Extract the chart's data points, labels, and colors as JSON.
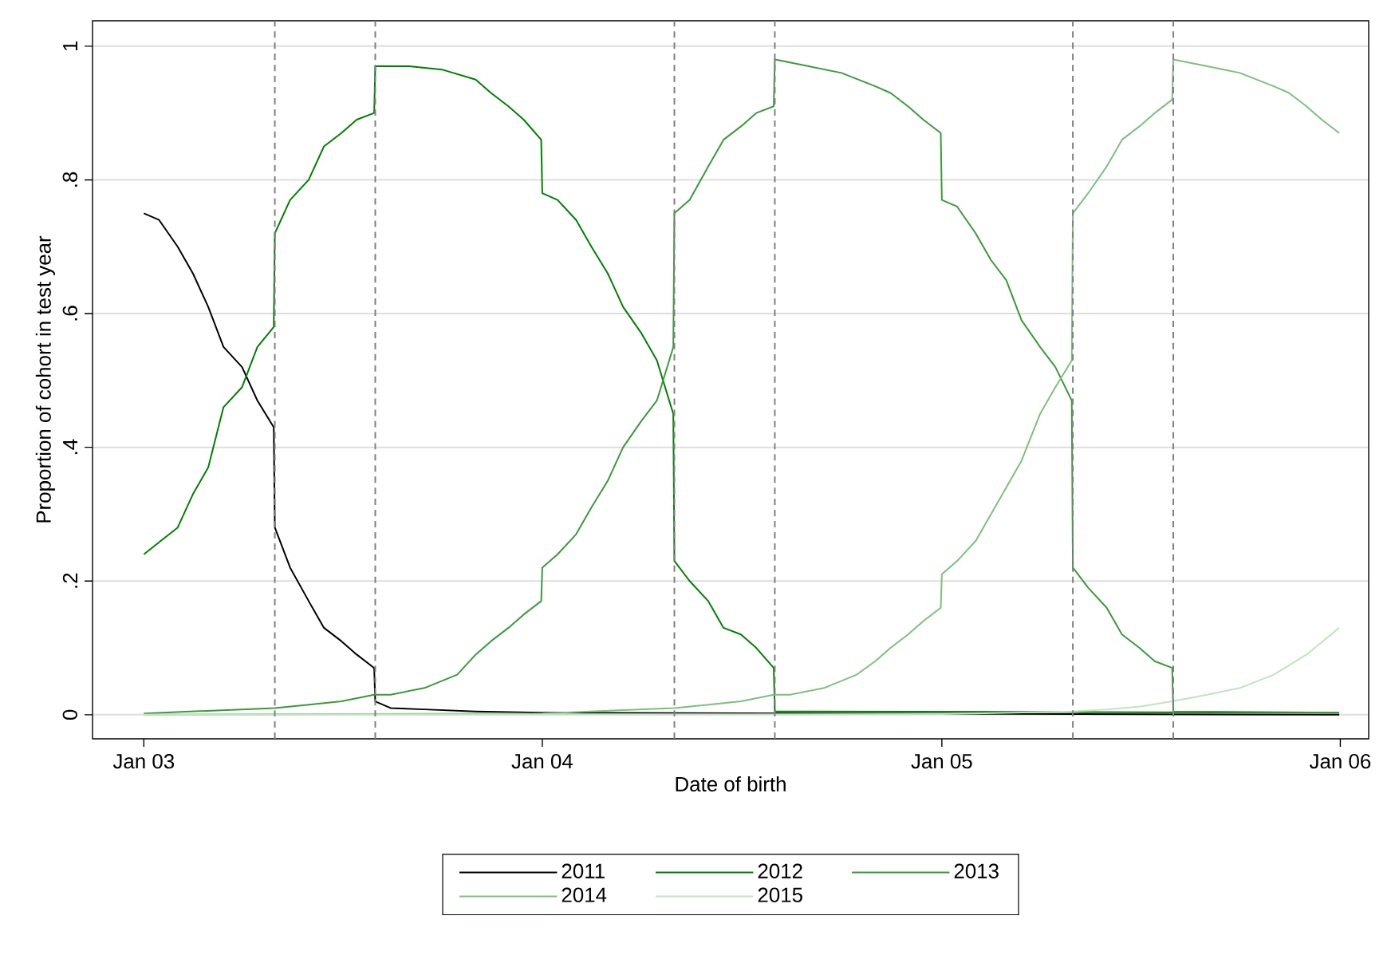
{
  "chart_data": {
    "type": "line",
    "xlabel": "Date of birth",
    "ylabel": "Proportion of cohort in test year",
    "xlim": [
      "2002-11-15",
      "2006-01-27"
    ],
    "ylim": [
      -0.036,
      1.038
    ],
    "xticks": [
      {
        "value": "2003-01-01",
        "label": "Jan 03"
      },
      {
        "value": "2004-01-01",
        "label": "Jan 04"
      },
      {
        "value": "2005-01-01",
        "label": "Jan 05"
      },
      {
        "value": "2006-01-01",
        "label": "Jan 06"
      }
    ],
    "yticks": [
      {
        "value": 0,
        "label": "0"
      },
      {
        "value": 0.2,
        "label": ".2"
      },
      {
        "value": 0.4,
        "label": ".4"
      },
      {
        "value": 0.6,
        "label": ".6"
      },
      {
        "value": 0.8,
        "label": ".8"
      },
      {
        "value": 1,
        "label": "1"
      }
    ],
    "grid": "y",
    "legend": "bottom",
    "line_style": "solid",
    "marker": "none",
    "ref_lines": [
      {
        "axis": "x",
        "value": "2003-05-01",
        "color": "#808080",
        "line_style": "dashed"
      },
      {
        "axis": "x",
        "value": "2003-08-01",
        "color": "#808080",
        "line_style": "dashed"
      },
      {
        "axis": "x",
        "value": "2004-05-01",
        "color": "#808080",
        "line_style": "dashed"
      },
      {
        "axis": "x",
        "value": "2004-08-01",
        "color": "#808080",
        "line_style": "dashed"
      },
      {
        "axis": "x",
        "value": "2005-05-01",
        "color": "#808080",
        "line_style": "dashed"
      },
      {
        "axis": "x",
        "value": "2005-08-01",
        "color": "#808080",
        "line_style": "dashed"
      }
    ],
    "series": [
      {
        "name": "2011",
        "color": "#000000",
        "x": [
          "2003-01-01",
          "2003-01-15",
          "2003-02-01",
          "2003-02-15",
          "2003-03-01",
          "2003-03-15",
          "2003-04-01",
          "2003-04-15",
          "2003-04-30",
          "2003-05-01",
          "2003-05-15",
          "2003-06-01",
          "2003-06-15",
          "2003-07-01",
          "2003-07-15",
          "2003-07-31",
          "2003-08-01",
          "2003-08-15",
          "2003-09-15",
          "2003-11-01",
          "2003-12-31",
          "2005-12-31"
        ],
        "values": [
          0.75,
          0.74,
          0.7,
          0.66,
          0.61,
          0.55,
          0.52,
          0.47,
          0.43,
          0.28,
          0.22,
          0.17,
          0.13,
          0.11,
          0.09,
          0.07,
          0.02,
          0.01,
          0.008,
          0.005,
          0.003,
          0
        ]
      },
      {
        "name": "2012",
        "color": "#007f00",
        "x": [
          "2003-01-01",
          "2003-02-01",
          "2003-02-15",
          "2003-03-01",
          "2003-03-15",
          "2003-04-01",
          "2003-04-15",
          "2003-04-30",
          "2003-05-01",
          "2003-05-15",
          "2003-06-01",
          "2003-06-15",
          "2003-07-01",
          "2003-07-15",
          "2003-07-31",
          "2003-08-01",
          "2003-09-01",
          "2003-10-01",
          "2003-11-01",
          "2003-11-15",
          "2003-12-01",
          "2003-12-15",
          "2003-12-31",
          "2004-01-01",
          "2004-01-15",
          "2004-02-01",
          "2004-02-15",
          "2004-03-01",
          "2004-03-15",
          "2004-04-01",
          "2004-04-15",
          "2004-04-30",
          "2004-05-01",
          "2004-05-15",
          "2004-06-01",
          "2004-06-15",
          "2004-07-01",
          "2004-07-15",
          "2004-07-31",
          "2004-08-01",
          "2005-12-31"
        ],
        "values": [
          0.24,
          0.28,
          0.33,
          0.37,
          0.46,
          0.49,
          0.55,
          0.58,
          0.72,
          0.77,
          0.8,
          0.85,
          0.87,
          0.89,
          0.9,
          0.97,
          0.97,
          0.965,
          0.95,
          0.93,
          0.91,
          0.89,
          0.86,
          0.78,
          0.77,
          0.74,
          0.7,
          0.66,
          0.61,
          0.57,
          0.53,
          0.45,
          0.23,
          0.2,
          0.17,
          0.13,
          0.12,
          0.1,
          0.07,
          0.005,
          0.003
        ]
      },
      {
        "name": "2013",
        "color": "#3a9a3a",
        "x": [
          "2003-01-01",
          "2003-05-01",
          "2003-06-01",
          "2003-07-01",
          "2003-07-31",
          "2003-08-15",
          "2003-09-15",
          "2003-10-15",
          "2003-11-01",
          "2003-11-15",
          "2003-12-01",
          "2003-12-15",
          "2003-12-31",
          "2004-01-01",
          "2004-01-15",
          "2004-02-01",
          "2004-02-15",
          "2004-03-01",
          "2004-03-15",
          "2004-04-01",
          "2004-04-15",
          "2004-04-30",
          "2004-05-01",
          "2004-05-15",
          "2004-06-01",
          "2004-06-15",
          "2004-07-01",
          "2004-07-15",
          "2004-07-31",
          "2004-08-01",
          "2004-09-01",
          "2004-10-01",
          "2004-11-01",
          "2004-11-15",
          "2004-12-01",
          "2004-12-15",
          "2004-12-31",
          "2005-01-01",
          "2005-01-15",
          "2005-02-01",
          "2005-02-15",
          "2005-03-01",
          "2005-03-15",
          "2005-04-01",
          "2005-04-15",
          "2005-04-30",
          "2005-05-01",
          "2005-05-15",
          "2005-06-01",
          "2005-06-15",
          "2005-07-01",
          "2005-07-15",
          "2005-07-31",
          "2005-08-01",
          "2005-12-31"
        ],
        "values": [
          0.002,
          0.01,
          0.015,
          0.02,
          0.03,
          0.03,
          0.04,
          0.06,
          0.09,
          0.11,
          0.13,
          0.15,
          0.17,
          0.22,
          0.24,
          0.27,
          0.31,
          0.35,
          0.4,
          0.44,
          0.47,
          0.55,
          0.75,
          0.77,
          0.82,
          0.86,
          0.88,
          0.9,
          0.91,
          0.98,
          0.97,
          0.96,
          0.94,
          0.93,
          0.91,
          0.89,
          0.87,
          0.77,
          0.76,
          0.72,
          0.68,
          0.65,
          0.59,
          0.55,
          0.52,
          0.47,
          0.22,
          0.19,
          0.16,
          0.12,
          0.1,
          0.08,
          0.07,
          0.005,
          0.003
        ]
      },
      {
        "name": "2014",
        "color": "#7cc07c",
        "x": [
          "2003-01-01",
          "2004-01-01",
          "2004-05-01",
          "2004-06-01",
          "2004-07-01",
          "2004-07-31",
          "2004-08-15",
          "2004-09-15",
          "2004-10-15",
          "2004-11-01",
          "2004-11-15",
          "2004-12-01",
          "2004-12-15",
          "2004-12-31",
          "2005-01-01",
          "2005-01-15",
          "2005-02-01",
          "2005-02-15",
          "2005-03-01",
          "2005-03-15",
          "2005-04-01",
          "2005-04-15",
          "2005-04-30",
          "2005-05-01",
          "2005-05-15",
          "2005-06-01",
          "2005-06-15",
          "2005-07-01",
          "2005-07-15",
          "2005-07-31",
          "2005-08-01",
          "2005-09-01",
          "2005-10-01",
          "2005-11-01",
          "2005-11-15",
          "2005-12-01",
          "2005-12-15",
          "2005-12-31"
        ],
        "values": [
          0,
          0.002,
          0.01,
          0.015,
          0.02,
          0.03,
          0.03,
          0.04,
          0.06,
          0.08,
          0.1,
          0.12,
          0.14,
          0.16,
          0.21,
          0.23,
          0.26,
          0.3,
          0.34,
          0.38,
          0.45,
          0.49,
          0.53,
          0.75,
          0.78,
          0.82,
          0.86,
          0.88,
          0.9,
          0.92,
          0.98,
          0.97,
          0.96,
          0.94,
          0.93,
          0.91,
          0.89,
          0.87
        ]
      },
      {
        "name": "2015",
        "color": "#c2e2c2",
        "x": [
          "2003-01-01",
          "2005-01-01",
          "2005-05-01",
          "2005-06-01",
          "2005-07-01",
          "2005-07-31",
          "2005-09-01",
          "2005-10-01",
          "2005-11-01",
          "2005-12-01",
          "2005-12-31"
        ],
        "values": [
          0,
          0.001,
          0.005,
          0.008,
          0.012,
          0.02,
          0.03,
          0.04,
          0.06,
          0.09,
          0.13
        ]
      }
    ]
  }
}
